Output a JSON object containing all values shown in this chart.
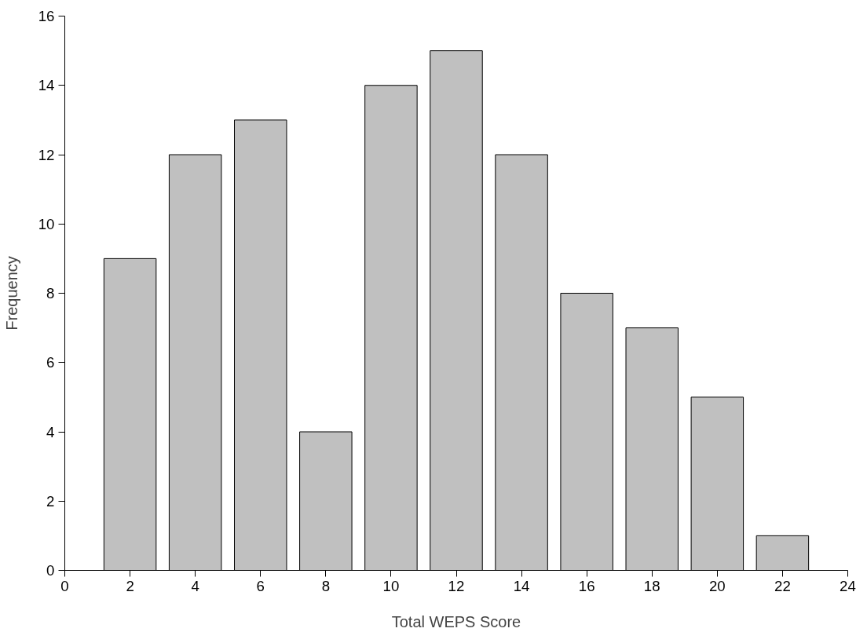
{
  "chart_data": {
    "type": "bar",
    "xlabel": "Total WEPS Score",
    "ylabel": "Frequency",
    "x": [
      2,
      4,
      6,
      8,
      10,
      12,
      14,
      16,
      18,
      20,
      22
    ],
    "values": [
      9,
      12,
      13,
      4,
      14,
      15,
      12,
      8,
      7,
      5,
      1
    ],
    "color": "#c0c0c0",
    "xlim": [
      0,
      24
    ],
    "xticks": [
      0,
      2,
      4,
      6,
      8,
      10,
      12,
      14,
      16,
      18,
      20,
      22,
      24
    ],
    "ylim": [
      0,
      16
    ],
    "yticks": [
      0,
      2,
      4,
      6,
      8,
      10,
      12,
      14,
      16
    ],
    "grid": false
  }
}
